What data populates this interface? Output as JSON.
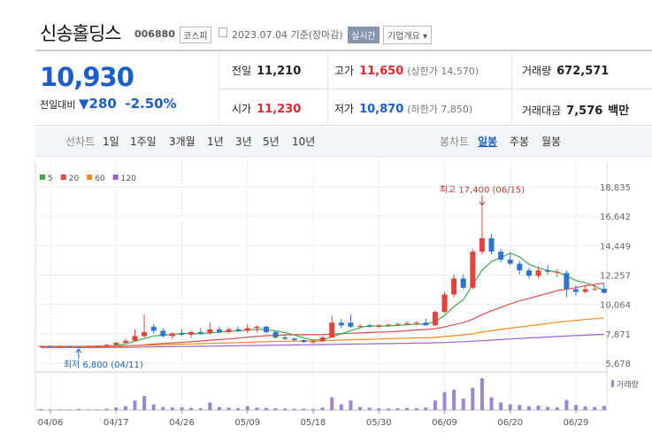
{
  "header": {
    "name": "신송홀딩스",
    "code": "006880",
    "market": "코스피",
    "date": "2023.07.04 기준(장마감)",
    "realtime": "실시간",
    "company_info": "기업개요 ▾"
  },
  "summary": {
    "price": "10,930",
    "change_label": "전일대비",
    "change": "▼280",
    "change_pct": "-2.50%",
    "rows": [
      [
        {
          "label": "전일",
          "value": "11,210"
        },
        {
          "label": "고가",
          "value": "11,650",
          "extra": "(상한가 14,570)"
        },
        {
          "label": "거래량",
          "value": "672,571"
        }
      ],
      [
        {
          "label": "시가",
          "value": "11,230"
        },
        {
          "label": "저가",
          "value": "10,870",
          "extra": "(하한가 7,850)"
        },
        {
          "label": "거래대금",
          "value": "7,576",
          "extra": "백만"
        }
      ]
    ]
  },
  "tabs": {
    "line_label": "선차트",
    "line_periods": [
      "1일",
      "1주일",
      "3개월",
      "1년",
      "3년",
      "5년",
      "10년"
    ],
    "candle_label": "봉차트",
    "candle_periods": [
      "일봉",
      "주봉",
      "월봉"
    ]
  },
  "chart_data": {
    "type": "candlestick",
    "categories": [
      null,
      "04/06",
      null,
      null,
      null,
      null,
      null,
      null,
      "04/17",
      null,
      null,
      null,
      null,
      null,
      null,
      "04/26",
      null,
      null,
      null,
      null,
      null,
      null,
      "05/09",
      null,
      null,
      null,
      null,
      null,
      null,
      "05/18",
      null,
      null,
      null,
      null,
      null,
      null,
      "05/30",
      null,
      null,
      null,
      null,
      null,
      null,
      "06/09",
      null,
      null,
      null,
      null,
      null,
      null,
      "06/20",
      null,
      null,
      null,
      null,
      null,
      null,
      "06/29",
      null,
      null,
      null
    ],
    "open": [
      6950,
      6950,
      6900,
      6920,
      6900,
      6880,
      6930,
      6950,
      7050,
      7200,
      7350,
      7700,
      8400,
      8100,
      7700,
      7900,
      7800,
      8000,
      7900,
      8200,
      8000,
      8200,
      8100,
      8300,
      8400,
      8000,
      7600,
      7500,
      7400,
      7250,
      7300,
      7600,
      8700,
      8700,
      8400,
      8450,
      8400,
      8500,
      8550,
      8600,
      8650,
      8700,
      8500,
      9500,
      10800,
      12000,
      11300,
      14000,
      15000,
      14000,
      13400,
      13100,
      12600,
      12200,
      12600,
      12500,
      12400,
      11200,
      11000,
      11200,
      11230
    ],
    "high": [
      7000,
      7000,
      6960,
      6980,
      6950,
      6960,
      7000,
      7100,
      7300,
      7500,
      8200,
      9300,
      8600,
      8300,
      8000,
      8200,
      8100,
      8300,
      8700,
      8400,
      8300,
      8400,
      8600,
      8500,
      8500,
      8100,
      7800,
      7600,
      7450,
      7400,
      7700,
      9200,
      9000,
      9300,
      8600,
      8600,
      8600,
      8650,
      8700,
      8800,
      8800,
      9000,
      9600,
      11000,
      12300,
      12300,
      14200,
      17400,
      15300,
      14200,
      13900,
      13300,
      12800,
      12900,
      13000,
      12700,
      12600,
      11500,
      11500,
      11500,
      11650
    ],
    "low": [
      6900,
      6880,
      6850,
      6860,
      6800,
      6850,
      6880,
      6920,
      7000,
      7150,
      7300,
      7600,
      7900,
      7600,
      7500,
      7700,
      7600,
      7800,
      7800,
      7900,
      7900,
      8000,
      7900,
      8000,
      7900,
      7500,
      7400,
      7300,
      7200,
      7150,
      7250,
      7550,
      8300,
      8300,
      8300,
      8350,
      8300,
      8400,
      8450,
      8500,
      8500,
      8600,
      8450,
      9400,
      10600,
      11200,
      11200,
      13800,
      13800,
      13200,
      13000,
      12300,
      12000,
      12000,
      12300,
      12100,
      10600,
      10700,
      10900,
      11100,
      10870
    ],
    "close": [
      6950,
      6900,
      6920,
      6900,
      6880,
      6930,
      6950,
      7050,
      7200,
      7350,
      7700,
      8000,
      8100,
      7700,
      7900,
      7800,
      8000,
      7900,
      8200,
      8000,
      8200,
      8100,
      8300,
      8400,
      8000,
      7600,
      7500,
      7400,
      7250,
      7300,
      7600,
      8700,
      8500,
      8400,
      8450,
      8400,
      8500,
      8550,
      8600,
      8650,
      8700,
      8500,
      9500,
      10800,
      12000,
      11300,
      14000,
      15000,
      14000,
      13400,
      13100,
      12600,
      12200,
      12600,
      12500,
      12500,
      11200,
      11000,
      11200,
      11210,
      10930
    ],
    "up_color": "#e8413b",
    "down_color": "#2f74d0",
    "ylim": [
      5150,
      20220
    ],
    "yticks": [
      {
        "value": 18835,
        "label": "18,835"
      },
      {
        "value": 16642,
        "label": "16,642"
      },
      {
        "value": 14449,
        "label": "14,449"
      },
      {
        "value": 12257,
        "label": "12,257"
      },
      {
        "value": 10064,
        "label": "10,064"
      },
      {
        "value": 7871,
        "label": "7,871"
      },
      {
        "value": 5678,
        "label": "5,678"
      }
    ],
    "grid": true,
    "moving_averages": [
      {
        "name": "5",
        "color": "#3fae49",
        "values": [
          6920,
          6920,
          6920,
          6910,
          6910,
          6917,
          6920,
          6950,
          7010,
          7110,
          7310,
          7520,
          7710,
          7770,
          7820,
          7900,
          7900,
          7860,
          7960,
          7980,
          8060,
          8080,
          8160,
          8200,
          8200,
          8080,
          7960,
          7780,
          7550,
          7410,
          7410,
          7650,
          7870,
          8100,
          8330,
          8490,
          8430,
          8460,
          8490,
          8540,
          8600,
          8590,
          8790,
          9230,
          9900,
          10420,
          11520,
          12620,
          13260,
          13540,
          13900,
          13620,
          13060,
          12780,
          12600,
          12480,
          12200,
          11840,
          11680,
          11420,
          11108
        ]
      },
      {
        "name": "20",
        "color": "#e04a4a",
        "values": [
          6900,
          6900,
          6900,
          6900,
          6900,
          6900,
          6905,
          6910,
          6930,
          6960,
          7000,
          7050,
          7110,
          7150,
          7190,
          7230,
          7280,
          7330,
          7390,
          7440,
          7490,
          7550,
          7620,
          7680,
          7730,
          7760,
          7790,
          7800,
          7800,
          7800,
          7810,
          7850,
          7880,
          7910,
          7930,
          7960,
          7990,
          8010,
          8050,
          8100,
          8160,
          8190,
          8250,
          8380,
          8550,
          8700,
          8960,
          9300,
          9590,
          9850,
          10100,
          10330,
          10510,
          10700,
          10890,
          11090,
          11200,
          11320,
          11450,
          11560,
          11640
        ]
      },
      {
        "name": "60",
        "color": "#f08a1c",
        "values": [
          6950,
          6950,
          6950,
          6950,
          6950,
          6950,
          6960,
          6960,
          6970,
          6980,
          6990,
          7010,
          7030,
          7050,
          7070,
          7090,
          7110,
          7130,
          7150,
          7170,
          7190,
          7210,
          7230,
          7260,
          7280,
          7300,
          7310,
          7320,
          7330,
          7340,
          7350,
          7380,
          7400,
          7420,
          7440,
          7460,
          7480,
          7500,
          7520,
          7540,
          7560,
          7570,
          7600,
          7660,
          7730,
          7790,
          7880,
          8000,
          8100,
          8200,
          8290,
          8380,
          8470,
          8550,
          8640,
          8730,
          8800,
          8870,
          8940,
          9000,
          9060
        ]
      },
      {
        "name": "120",
        "color": "#9b62c9",
        "values": [
          6850,
          6850,
          6850,
          6850,
          6850,
          6850,
          6850,
          6850,
          6860,
          6860,
          6870,
          6880,
          6890,
          6900,
          6910,
          6920,
          6930,
          6940,
          6950,
          6960,
          6970,
          6980,
          6990,
          7000,
          7010,
          7020,
          7030,
          7040,
          7050,
          7060,
          7070,
          7080,
          7090,
          7100,
          7110,
          7120,
          7130,
          7140,
          7150,
          7160,
          7170,
          7180,
          7200,
          7220,
          7250,
          7280,
          7320,
          7360,
          7400,
          7440,
          7480,
          7520,
          7560,
          7590,
          7630,
          7670,
          7700,
          7740,
          7770,
          7800,
          7830
        ]
      }
    ],
    "volume": {
      "name": "거래량",
      "color": "#9a86d4",
      "values": [
        150000,
        120000,
        100000,
        90000,
        180000,
        110000,
        100000,
        200000,
        400000,
        600000,
        1500000,
        2200000,
        900000,
        500000,
        400000,
        450000,
        350000,
        300000,
        1200000,
        500000,
        400000,
        300000,
        600000,
        400000,
        350000,
        300000,
        250000,
        200000,
        220000,
        180000,
        400000,
        2000000,
        900000,
        1500000,
        500000,
        400000,
        300000,
        250000,
        300000,
        350000,
        300000,
        400000,
        1500000,
        2800000,
        3200000,
        1800000,
        3500000,
        5000000,
        2000000,
        1200000,
        900000,
        800000,
        600000,
        700000,
        500000,
        450000,
        1600000,
        800000,
        600000,
        500000,
        672571
      ]
    },
    "annotations": [
      {
        "text": "최고 17,400 (06/15)",
        "value": 17400,
        "of": "high"
      },
      {
        "text": "최저 6,800 (04/11)",
        "value": 6800,
        "of": "low"
      }
    ]
  }
}
